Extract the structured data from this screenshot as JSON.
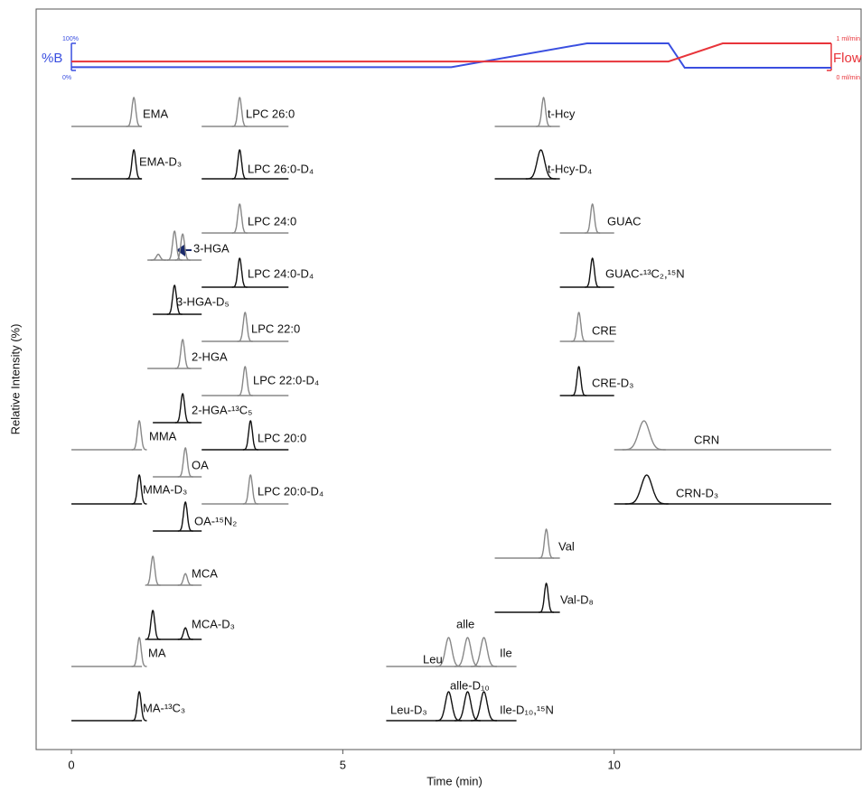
{
  "chart_data": [
    {
      "type": "line",
      "xlim": [
        -0.65,
        14.55
      ],
      "ylim": [
        0,
        100
      ],
      "yticks": [
        {
          "value": 100,
          "label": "100%"
        },
        {
          "value": 0,
          "label": "0%"
        }
      ],
      "y2lim": [
        0,
        1
      ],
      "y2ticks": [
        {
          "value": 1,
          "label": "1 ml/min"
        },
        {
          "value": 0,
          "label": "0 ml/min"
        }
      ],
      "series": [
        {
          "name": "%B",
          "color": "#3a4fe0",
          "x": [
            0,
            7,
            9.5,
            11,
            11.3,
            14
          ],
          "values": [
            12,
            12,
            100,
            100,
            10,
            10
          ]
        },
        {
          "name": "Flow",
          "color": "#e8343a",
          "axis": "y2",
          "x": [
            0,
            11,
            12,
            14
          ],
          "values": [
            0.33,
            0.33,
            1,
            1
          ]
        }
      ]
    },
    {
      "type": "chromatogram",
      "xlabel": "Time (min)",
      "ylabel": "Relative Intensity (%)",
      "xlim": [
        -0.65,
        14.55
      ],
      "xticks": [
        0,
        5,
        10
      ],
      "traces": [
        {
          "labels": [
            "EMA"
          ],
          "color": "#888888",
          "range": [
            0,
            1.3
          ],
          "rts": [
            1.15
          ],
          "heights": [
            100
          ]
        },
        {
          "labels": [
            "LPC 26:0"
          ],
          "color": "#888888",
          "range": [
            2.4,
            4.0
          ],
          "rts": [
            3.1
          ],
          "heights": [
            100
          ]
        },
        {
          "labels": [
            "t-Hcy"
          ],
          "color": "#888888",
          "range": [
            7.8,
            9.0
          ],
          "rts": [
            8.7
          ],
          "heights": [
            100
          ]
        },
        {
          "labels": [
            "EMA-D₃"
          ],
          "color": "#111111",
          "range": [
            0,
            1.3
          ],
          "rts": [
            1.15
          ],
          "heights": [
            100
          ]
        },
        {
          "labels": [
            "LPC 26:0-D₄"
          ],
          "color": "#111111",
          "range": [
            2.4,
            4.0
          ],
          "rts": [
            3.1
          ],
          "heights": [
            100
          ]
        },
        {
          "labels": [
            "t-Hcy-D₄"
          ],
          "color": "#111111",
          "range": [
            7.8,
            9.0
          ],
          "rts": [
            8.65
          ],
          "heights": [
            100
          ]
        },
        {
          "labels": [
            "LPC 24:0"
          ],
          "color": "#888888",
          "range": [
            2.4,
            4.0
          ],
          "rts": [
            3.1
          ],
          "heights": [
            100
          ]
        },
        {
          "labels": [
            "GUAC"
          ],
          "color": "#888888",
          "range": [
            9.0,
            10.0
          ],
          "rts": [
            9.6
          ],
          "heights": [
            100
          ]
        },
        {
          "labels": [
            "3-HGA"
          ],
          "color": "#888888",
          "range": [
            1.4,
            2.4
          ],
          "rts": [
            1.6,
            1.9,
            2.05
          ],
          "heights": [
            20,
            100,
            90
          ]
        },
        {
          "labels": [
            "LPC 24:0-D₄"
          ],
          "color": "#111111",
          "range": [
            2.4,
            4.0
          ],
          "rts": [
            3.1
          ],
          "heights": [
            100
          ]
        },
        {
          "labels": [
            "GUAC-¹³C₂,¹⁵N"
          ],
          "color": "#111111",
          "range": [
            9.0,
            10.0
          ],
          "rts": [
            9.6
          ],
          "heights": [
            100
          ]
        },
        {
          "labels": [
            "3-HGA-D₅"
          ],
          "color": "#111111",
          "range": [
            1.5,
            2.4
          ],
          "rts": [
            1.9
          ],
          "heights": [
            100
          ]
        },
        {
          "labels": [
            "LPC 22:0"
          ],
          "color": "#888888",
          "range": [
            2.4,
            4.0
          ],
          "rts": [
            3.2
          ],
          "heights": [
            100
          ]
        },
        {
          "labels": [
            "CRE"
          ],
          "color": "#888888",
          "range": [
            9.0,
            10.0
          ],
          "rts": [
            9.35
          ],
          "heights": [
            100
          ]
        },
        {
          "labels": [
            "2-HGA"
          ],
          "color": "#888888",
          "range": [
            1.4,
            2.4
          ],
          "rts": [
            2.05
          ],
          "heights": [
            100
          ]
        },
        {
          "labels": [
            "LPC 22:0-D₄"
          ],
          "color": "#888888",
          "range": [
            2.4,
            4.0
          ],
          "rts": [
            3.2
          ],
          "heights": [
            100
          ]
        },
        {
          "labels": [
            "CRE-D₃"
          ],
          "color": "#111111",
          "range": [
            9.0,
            10.0
          ],
          "rts": [
            9.35
          ],
          "heights": [
            100
          ]
        },
        {
          "labels": [
            "2-HGA-¹³C₅"
          ],
          "color": "#111111",
          "range": [
            1.5,
            2.4
          ],
          "rts": [
            2.05
          ],
          "heights": [
            100
          ]
        },
        {
          "labels": [
            "MMA"
          ],
          "color": "#888888",
          "range": [
            0,
            1.3
          ],
          "rts": [
            1.25
          ],
          "heights": [
            100
          ]
        },
        {
          "labels": [
            "LPC 20:0"
          ],
          "color": "#111111",
          "range": [
            2.4,
            4.0
          ],
          "rts": [
            3.3
          ],
          "heights": [
            100
          ]
        },
        {
          "labels": [
            "CRN"
          ],
          "color": "#888888",
          "range": [
            10.0,
            14.0
          ],
          "rts": [
            10.55
          ],
          "heights": [
            100
          ]
        },
        {
          "labels": [
            "OA"
          ],
          "color": "#888888",
          "range": [
            1.5,
            2.4
          ],
          "rts": [
            2.1
          ],
          "heights": [
            100
          ]
        },
        {
          "labels": [
            "MMA-D₃"
          ],
          "color": "#111111",
          "range": [
            0,
            1.3
          ],
          "rts": [
            1.25
          ],
          "heights": [
            100
          ]
        },
        {
          "labels": [
            "LPC 20:0-D₄"
          ],
          "color": "#888888",
          "range": [
            2.4,
            4.0
          ],
          "rts": [
            3.3
          ],
          "heights": [
            100
          ]
        },
        {
          "labels": [
            "CRN-D₃"
          ],
          "color": "#111111",
          "range": [
            10.0,
            14.0
          ],
          "rts": [
            10.6
          ],
          "heights": [
            100
          ]
        },
        {
          "labels": [
            "OA-¹⁵N₂"
          ],
          "color": "#111111",
          "range": [
            1.5,
            2.4
          ],
          "rts": [
            2.1
          ],
          "heights": [
            100
          ]
        },
        {
          "labels": [
            "Val"
          ],
          "color": "#888888",
          "range": [
            7.8,
            9.0
          ],
          "rts": [
            8.75
          ],
          "heights": [
            100
          ]
        },
        {
          "labels": [
            "MCA"
          ],
          "color": "#888888",
          "range": [
            1.4,
            2.4
          ],
          "rts": [
            1.5,
            2.1
          ],
          "heights": [
            100,
            40
          ]
        },
        {
          "labels": [
            "Val-D₈"
          ],
          "color": "#111111",
          "range": [
            7.8,
            9.0
          ],
          "rts": [
            8.75
          ],
          "heights": [
            100
          ]
        },
        {
          "labels": [
            "MCA-D₃"
          ],
          "color": "#111111",
          "range": [
            1.4,
            2.4
          ],
          "rts": [
            1.5,
            2.1
          ],
          "heights": [
            100,
            40
          ]
        },
        {
          "labels": [
            "MA"
          ],
          "color": "#888888",
          "range": [
            0,
            1.3
          ],
          "rts": [
            1.25
          ],
          "heights": [
            100
          ]
        },
        {
          "labels": [
            "Leu",
            "alle",
            "Ile"
          ],
          "color": "#888888",
          "range": [
            5.8,
            8.2
          ],
          "rts": [
            6.95,
            7.3,
            7.6
          ],
          "heights": [
            100,
            100,
            100
          ]
        },
        {
          "labels": [
            "MA-¹³C₃"
          ],
          "color": "#111111",
          "range": [
            0,
            1.3
          ],
          "rts": [
            1.25
          ],
          "heights": [
            100
          ]
        },
        {
          "labels": [
            "Leu-D₃",
            "alle-D₁₀",
            "Ile-D₁₀,¹⁵N"
          ],
          "color": "#111111",
          "range": [
            5.8,
            8.2
          ],
          "rts": [
            6.95,
            7.3,
            7.6
          ],
          "heights": [
            100,
            100,
            100
          ]
        }
      ]
    }
  ]
}
